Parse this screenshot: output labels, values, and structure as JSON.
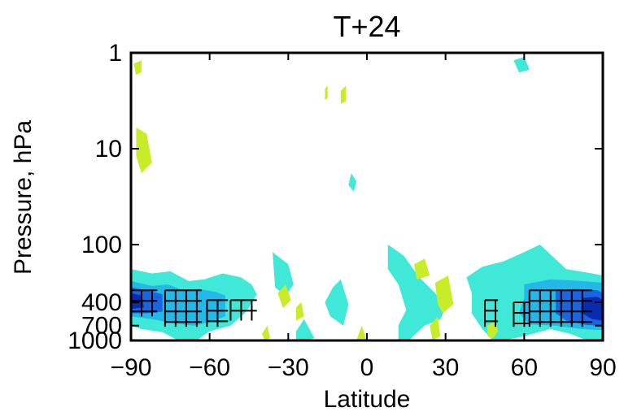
{
  "chart_data": {
    "type": "heatmap",
    "title": "T+24",
    "xlabel": "Latitude",
    "ylabel": "Pressure, hPa",
    "xlim": [
      -90,
      90
    ],
    "ylim": [
      1000,
      1
    ],
    "y_scale": "log",
    "x_ticks": [
      -90,
      -60,
      -30,
      0,
      30,
      60,
      90
    ],
    "x_tick_labels": [
      "−90",
      "−60",
      "−30",
      "0",
      "30",
      "60",
      "90"
    ],
    "y_ticks": [
      1,
      10,
      100,
      400,
      700,
      1000
    ],
    "y_tick_labels": [
      "1",
      "10",
      "100",
      "400",
      "700",
      "1000"
    ],
    "grid": false,
    "legend": "none",
    "colors": {
      "level_neg1": "#40e8d8",
      "level_neg2": "#22b8e8",
      "level_neg3": "#1a66e0",
      "level_neg4": "#0a2ab0",
      "level_pos1": "#c8ec28",
      "hatch": "#000000",
      "frame": "#000000"
    },
    "contours": [
      {
        "level": -1,
        "label": "cyan",
        "regions": [
          [
            [
              -90,
              180
            ],
            [
              -82,
              200
            ],
            [
              -75,
              190
            ],
            [
              -68,
              240
            ],
            [
              -62,
              230
            ],
            [
              -55,
              200
            ],
            [
              -48,
              220
            ],
            [
              -44,
              260
            ],
            [
              -42,
              330
            ],
            [
              -46,
              500
            ],
            [
              -52,
              700
            ],
            [
              -60,
              800
            ],
            [
              -65,
              1000
            ],
            [
              -72,
              1000
            ],
            [
              -78,
              820
            ],
            [
              -86,
              760
            ],
            [
              -90,
              700
            ]
          ],
          [
            [
              -36,
              120
            ],
            [
              -30,
              160
            ],
            [
              -28,
              260
            ],
            [
              -31,
              340
            ],
            [
              -35,
              280
            ]
          ],
          [
            [
              -27,
              800
            ],
            [
              -24,
              600
            ],
            [
              -20,
              950
            ],
            [
              -24,
              1000
            ],
            [
              -27,
              1000
            ]
          ],
          [
            [
              -13,
              280
            ],
            [
              -10,
              230
            ],
            [
              -7,
              420
            ],
            [
              -9,
              700
            ],
            [
              -14,
              560
            ],
            [
              -16,
              400
            ]
          ],
          [
            [
              -6,
              18
            ],
            [
              -4,
              22
            ],
            [
              -5,
              28
            ],
            [
              -7,
              24
            ]
          ],
          [
            [
              8,
              100
            ],
            [
              14,
              130
            ],
            [
              20,
              220
            ],
            [
              26,
              320
            ],
            [
              30,
              460
            ],
            [
              28,
              600
            ],
            [
              22,
              700
            ],
            [
              16,
              1000
            ],
            [
              12,
              1000
            ],
            [
              12,
              700
            ],
            [
              15,
              480
            ],
            [
              12,
              260
            ],
            [
              8,
              180
            ]
          ],
          [
            [
              38,
              220
            ],
            [
              44,
              170
            ],
            [
              52,
              150
            ],
            [
              60,
              120
            ],
            [
              66,
              100
            ],
            [
              76,
              180
            ],
            [
              86,
              200
            ],
            [
              90,
              210
            ],
            [
              90,
              1000
            ],
            [
              84,
              1000
            ],
            [
              78,
              860
            ],
            [
              70,
              760
            ],
            [
              60,
              900
            ],
            [
              52,
              1000
            ],
            [
              48,
              1000
            ],
            [
              44,
              760
            ],
            [
              40,
              520
            ],
            [
              40,
              320
            ]
          ],
          [
            [
              56,
              1.2
            ],
            [
              60,
              1.1
            ],
            [
              62,
              1.5
            ],
            [
              58,
              1.6
            ]
          ]
        ]
      },
      {
        "level": -2,
        "label": "light-blue",
        "regions": [
          [
            [
              -90,
              240
            ],
            [
              -82,
              270
            ],
            [
              -76,
              260
            ],
            [
              -70,
              300
            ],
            [
              -64,
              290
            ],
            [
              -58,
              310
            ],
            [
              -54,
              340
            ],
            [
              -54,
              560
            ],
            [
              -60,
              640
            ],
            [
              -66,
              700
            ],
            [
              -74,
              660
            ],
            [
              -82,
              600
            ],
            [
              -90,
              560
            ]
          ],
          [
            [
              60,
              260
            ],
            [
              70,
              230
            ],
            [
              82,
              240
            ],
            [
              90,
              250
            ],
            [
              90,
              780
            ],
            [
              82,
              760
            ],
            [
              72,
              700
            ],
            [
              62,
              680
            ],
            [
              58,
              520
            ],
            [
              60,
              360
            ]
          ]
        ]
      },
      {
        "level": -3,
        "label": "blue",
        "regions": [
          [
            [
              -90,
              280
            ],
            [
              -84,
              300
            ],
            [
              -78,
              330
            ],
            [
              -78,
              500
            ],
            [
              -84,
              520
            ],
            [
              -90,
              520
            ]
          ],
          [
            [
              72,
              300
            ],
            [
              80,
              290
            ],
            [
              88,
              300
            ],
            [
              90,
              320
            ],
            [
              90,
              700
            ],
            [
              84,
              690
            ],
            [
              76,
              620
            ],
            [
              72,
              520
            ]
          ]
        ]
      },
      {
        "level": -4,
        "label": "dark-blue",
        "regions": [
          [
            [
              -90,
              320
            ],
            [
              -86,
              340
            ],
            [
              -85,
              450
            ],
            [
              -90,
              470
            ]
          ],
          [
            [
              82,
              360
            ],
            [
              88,
              350
            ],
            [
              90,
              380
            ],
            [
              90,
              620
            ],
            [
              86,
              600
            ],
            [
              82,
              520
            ]
          ]
        ]
      },
      {
        "level": 1,
        "label": "yellow-green",
        "regions": [
          [
            [
              -88,
              6
            ],
            [
              -84,
              7
            ],
            [
              -82,
              14
            ],
            [
              -86,
              18
            ],
            [
              -88,
              12
            ]
          ],
          [
            [
              -89,
              1.3
            ],
            [
              -86,
              1.2
            ],
            [
              -86,
              1.6
            ],
            [
              -88,
              1.7
            ]
          ],
          [
            [
              -34,
              320
            ],
            [
              -31,
              260
            ],
            [
              -29,
              380
            ],
            [
              -32,
              460
            ]
          ],
          [
            [
              -27,
              450
            ],
            [
              -25,
              400
            ],
            [
              -24,
              560
            ],
            [
              -27,
              620
            ]
          ],
          [
            [
              -40,
              850
            ],
            [
              -38,
              700
            ],
            [
              -37,
              950
            ],
            [
              -39,
              1000
            ]
          ],
          [
            [
              -4,
              1000
            ],
            [
              -2,
              700
            ],
            [
              0,
              1000
            ]
          ],
          [
            [
              18,
              160
            ],
            [
              22,
              140
            ],
            [
              24,
              210
            ],
            [
              19,
              230
            ]
          ],
          [
            [
              26,
              250
            ],
            [
              31,
              210
            ],
            [
              33,
              420
            ],
            [
              29,
              520
            ],
            [
              27,
              420
            ]
          ],
          [
            [
              24,
              700
            ],
            [
              27,
              560
            ],
            [
              28,
              900
            ],
            [
              25,
              1000
            ]
          ],
          [
            [
              46,
              700
            ],
            [
              49,
              620
            ],
            [
              50,
              800
            ],
            [
              48,
              960
            ],
            [
              46,
              900
            ]
          ],
          [
            [
              -10,
              2.5
            ],
            [
              -8,
              2.2
            ],
            [
              -8,
              3.2
            ],
            [
              -10,
              3.4
            ]
          ],
          [
            [
              -16,
              2.4
            ],
            [
              -15,
              2.2
            ],
            [
              -15,
              3.0
            ],
            [
              -16,
              3.1
            ]
          ]
        ]
      }
    ],
    "hatched_regions": [
      {
        "lat": [
          -90,
          -80
        ],
        "p": [
          300,
          560
        ]
      },
      {
        "lat": [
          -77,
          -63
        ],
        "p": [
          300,
          720
        ]
      },
      {
        "lat": [
          -61,
          -53
        ],
        "p": [
          380,
          720
        ]
      },
      {
        "lat": [
          -52,
          -42
        ],
        "p": [
          380,
          620
        ]
      },
      {
        "lat": [
          45,
          50
        ],
        "p": [
          380,
          720
        ]
      },
      {
        "lat": [
          56,
          62
        ],
        "p": [
          400,
          720
        ]
      },
      {
        "lat": [
          62,
          86
        ],
        "p": [
          300,
          720
        ]
      }
    ]
  }
}
